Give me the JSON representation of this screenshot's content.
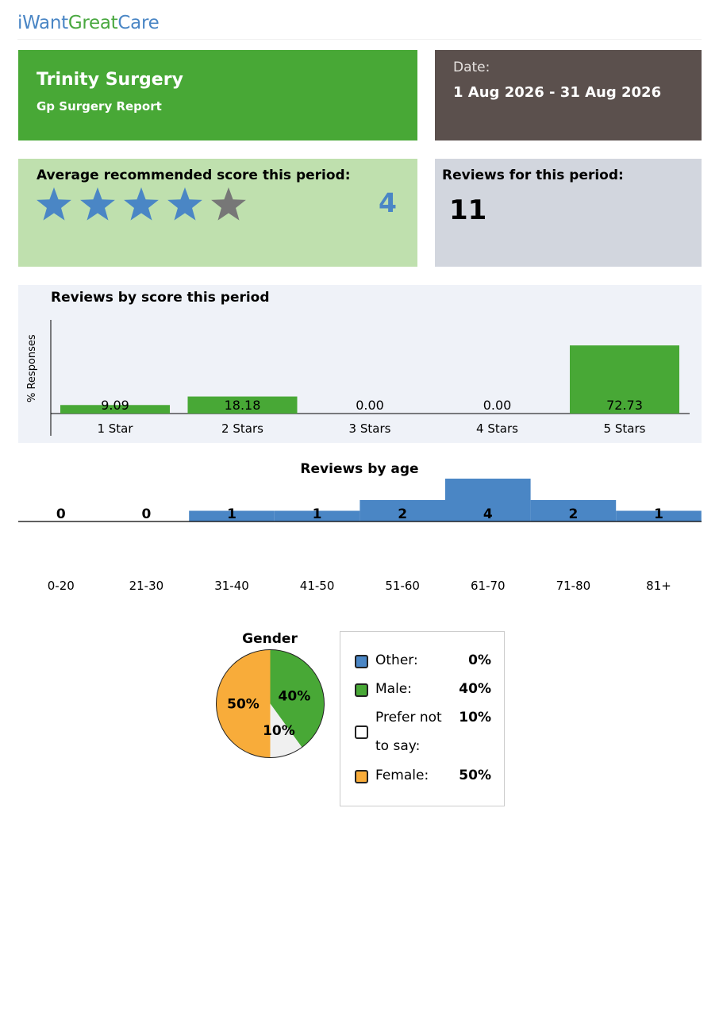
{
  "logo": {
    "part1": "iWant",
    "part2": "Great",
    "part3": "Care"
  },
  "header": {
    "practice_name": "Trinity Surgery",
    "report_type": "Gp Surgery Report",
    "date_label": "Date:",
    "date_range": "1 Aug 2026 - 31 Aug 2026"
  },
  "summary": {
    "avg_title": "Average recommended score this period:",
    "avg_score": "4",
    "stars_filled": 4,
    "stars_total": 5,
    "reviews_title": "Reviews for this period:",
    "reviews_count": "11"
  },
  "colors": {
    "brand_blue": "#4a86c5",
    "brand_green": "#48a836",
    "star_empty": "#777777",
    "female": "#f8ac3a",
    "prefer_not": "#f0f0f0"
  },
  "chart_data": [
    {
      "type": "bar",
      "title": "Reviews by score this period",
      "ylabel": "% Responses",
      "categories": [
        "1 Star",
        "2 Stars",
        "3 Stars",
        "4 Stars",
        "5 Stars"
      ],
      "values": [
        9.09,
        18.18,
        0.0,
        0.0,
        72.73
      ],
      "value_labels": [
        "9.09",
        "18.18",
        "0.00",
        "0.00",
        "72.73"
      ],
      "ylim": [
        0,
        100
      ],
      "color": "#48a836"
    },
    {
      "type": "bar",
      "title": "Reviews by age",
      "categories": [
        "0-20",
        "21-30",
        "31-40",
        "41-50",
        "51-60",
        "61-70",
        "71-80",
        "81+"
      ],
      "values": [
        0,
        0,
        1,
        1,
        2,
        4,
        2,
        1
      ],
      "value_labels": [
        "0",
        "0",
        "1",
        "1",
        "2",
        "4",
        "2",
        "1"
      ],
      "color": "#4a86c5"
    },
    {
      "type": "pie",
      "title": "Gender",
      "slices": [
        {
          "label": "Other:",
          "value": 0,
          "value_text": "0%",
          "color": "#4a86c5"
        },
        {
          "label": "Male:",
          "value": 40,
          "value_text": "40%",
          "color": "#48a836"
        },
        {
          "label": "Prefer not to say:",
          "value": 10,
          "value_text": "10%",
          "color": "#f0f0f0"
        },
        {
          "label": "Female:",
          "value": 50,
          "value_text": "50%",
          "color": "#f8ac3a"
        }
      ]
    }
  ]
}
